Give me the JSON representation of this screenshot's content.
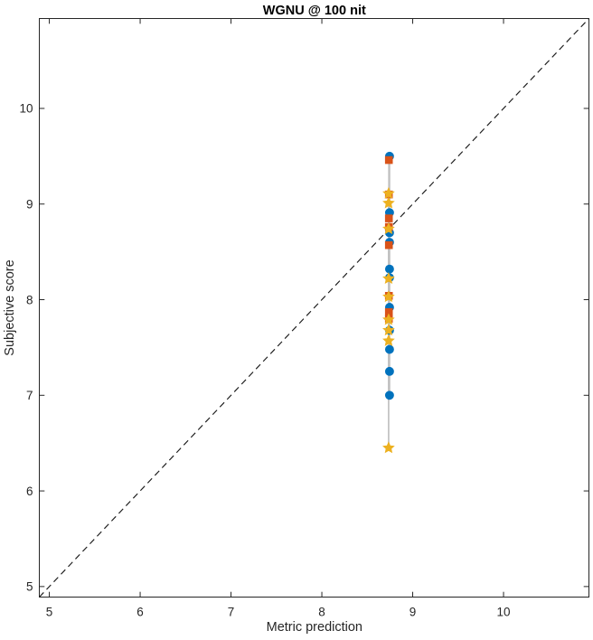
{
  "chart_data": {
    "type": "scatter",
    "title": "WGNU @ 100 nit",
    "xlabel": "Metric prediction",
    "ylabel": "Subjective score",
    "xlim": [
      4.89,
      10.94
    ],
    "ylim": [
      4.89,
      10.94
    ],
    "x_ticks": [
      5,
      6,
      7,
      8,
      9,
      10
    ],
    "y_ticks": [
      5,
      6,
      7,
      8,
      9,
      10
    ],
    "grid": false,
    "box": true,
    "tick_direction": "in",
    "axis_color": "#262626",
    "identity_line": {
      "style": "dashed",
      "color": "#1a1a1a",
      "from": [
        4.89,
        4.89
      ],
      "to": [
        10.94,
        10.94
      ]
    },
    "series": [
      {
        "name": "circle-series",
        "marker": "circle",
        "color": "#0072BD",
        "line_color": "#c1c1c1",
        "x": 8.745,
        "y": [
          9.5,
          8.91,
          8.7,
          8.6,
          8.32,
          8.23,
          7.92,
          7.68,
          7.48,
          7.25,
          7.0
        ]
      },
      {
        "name": "square-series",
        "marker": "square",
        "color": "#D95319",
        "line_color": "#c1c1c1",
        "x": 8.738,
        "y": [
          9.46,
          9.1,
          8.85,
          8.76,
          8.57,
          8.04,
          7.87,
          7.8
        ]
      },
      {
        "name": "star-series",
        "marker": "pentagram",
        "color": "#EDB120",
        "line_color": "#c1c1c1",
        "x": 8.735,
        "y": [
          9.11,
          9.01,
          8.74,
          8.22,
          8.03,
          7.79,
          7.68,
          7.57,
          6.45
        ]
      }
    ]
  }
}
